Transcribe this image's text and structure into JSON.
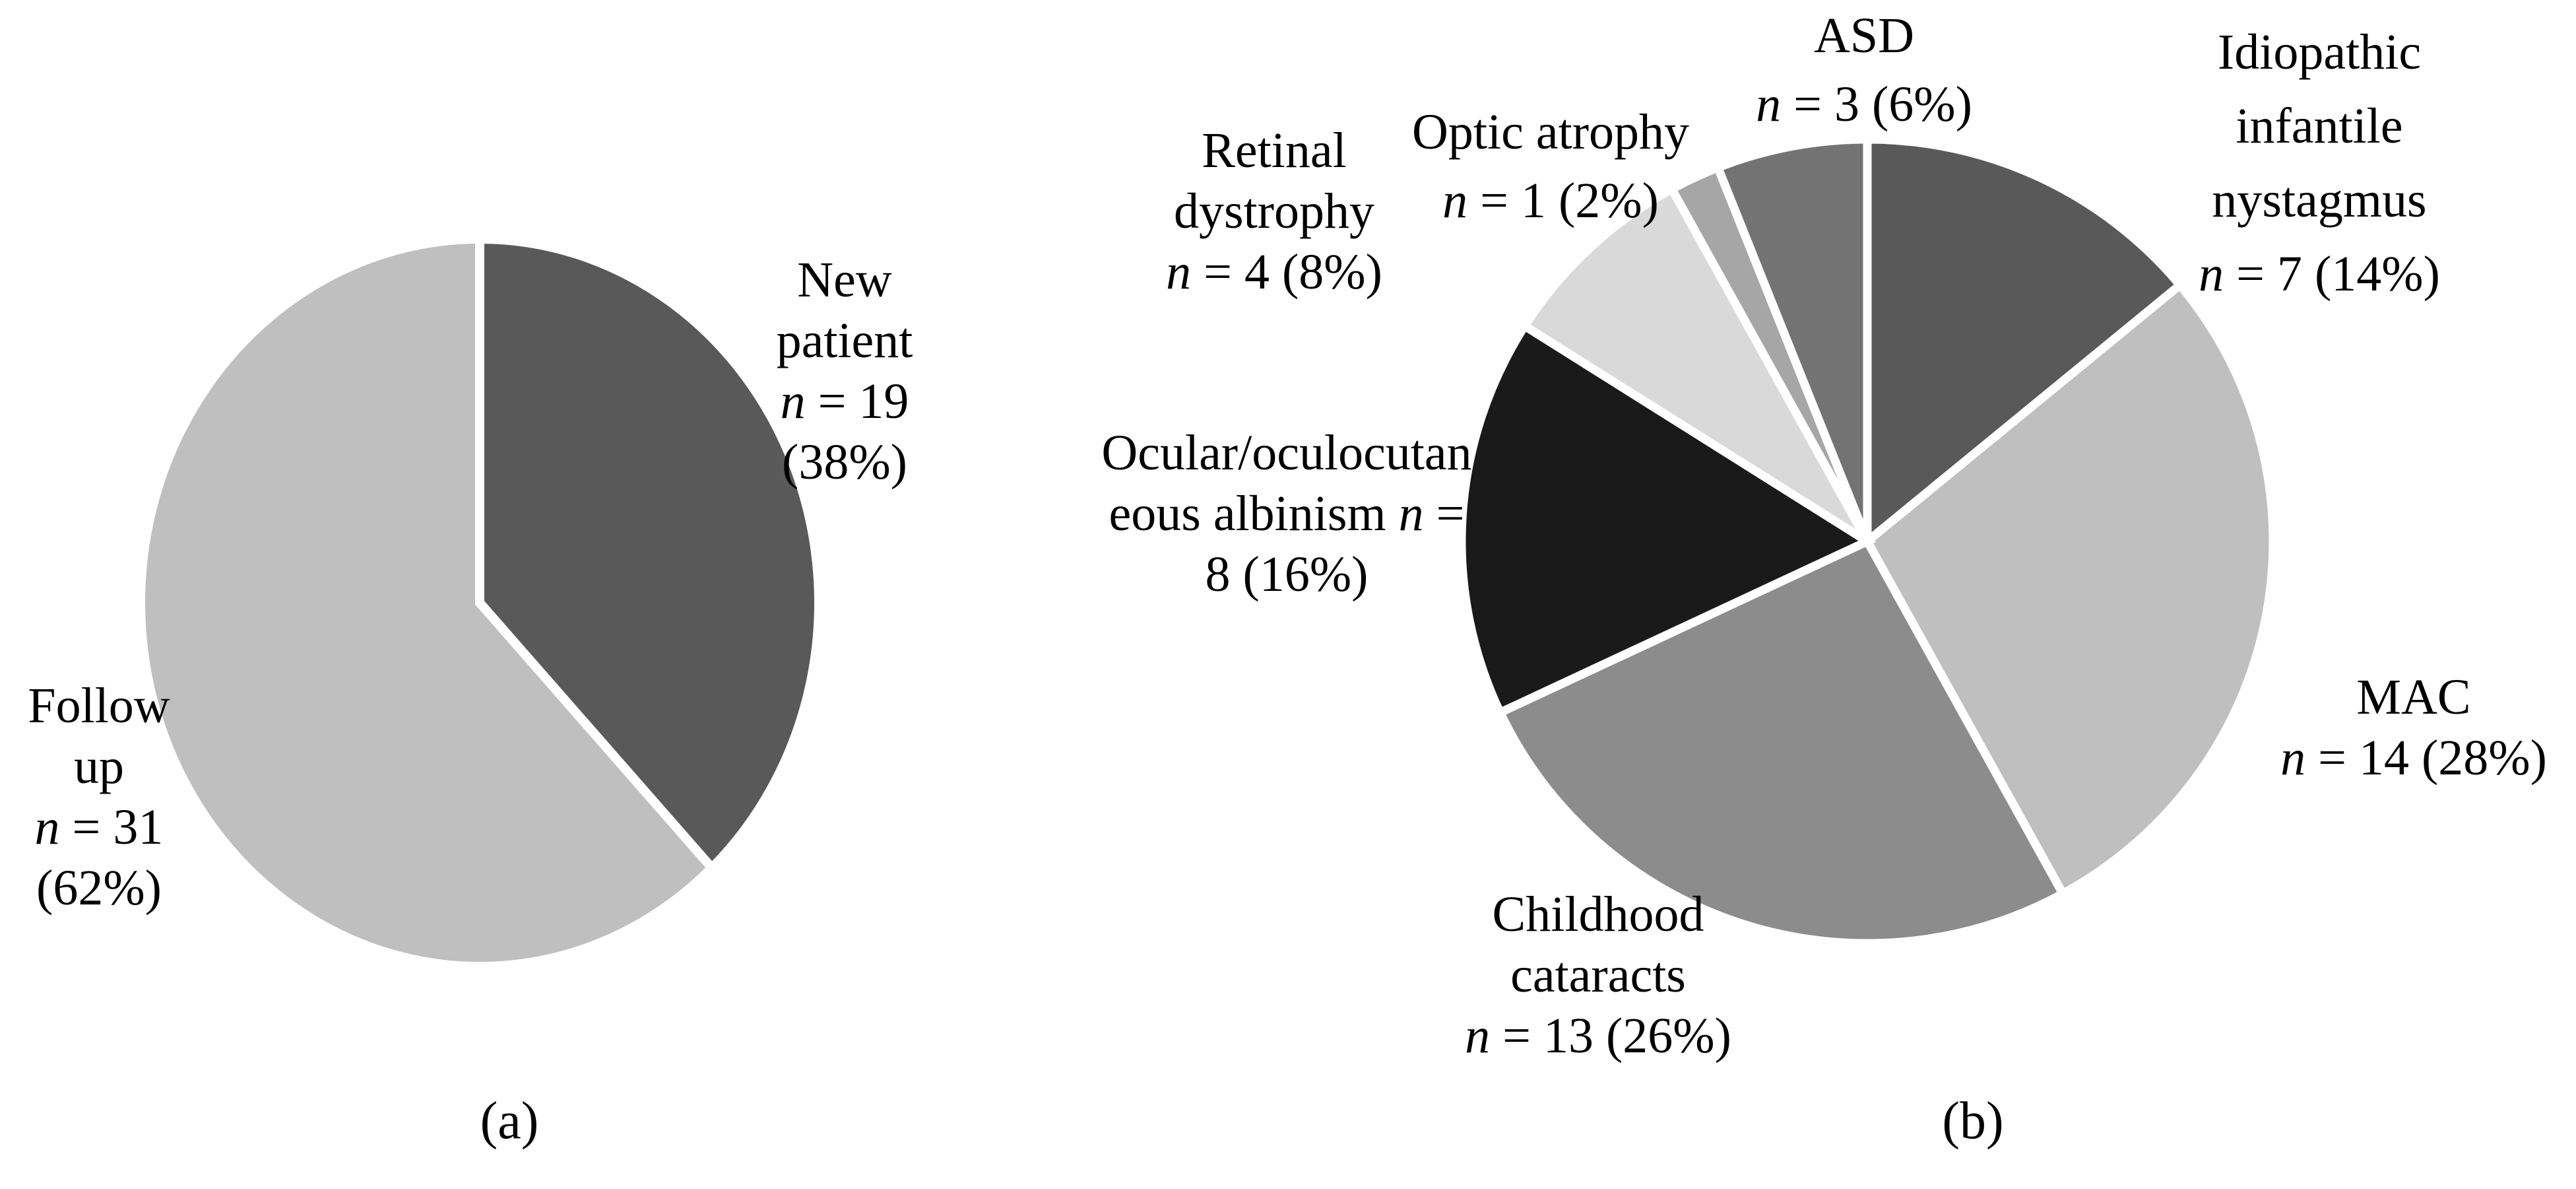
{
  "figure": {
    "background": "#ffffff",
    "separator_color": "#ffffff",
    "text_color": "#000000",
    "captions": {
      "a": "(a)",
      "b": "(b)"
    }
  },
  "chart_data": [
    {
      "id": "patient-type-pie",
      "type": "pie",
      "panel": "(a)",
      "start_angle_deg": 0,
      "direction": "clockwise",
      "legend": false,
      "slices": [
        {
          "id": "new-patient",
          "label": "New patient",
          "n": 19,
          "percent": 38,
          "value": 38,
          "color": "#595959",
          "label_lines": [
            "New",
            "patient",
            "n = 19",
            "(38%)"
          ]
        },
        {
          "id": "follow-up",
          "label": "Follow up",
          "n": 31,
          "percent": 62,
          "value": 62,
          "color": "#bfbfbf",
          "label_lines": [
            "Follow",
            "up",
            "n = 31",
            "(62%)"
          ]
        }
      ]
    },
    {
      "id": "diagnosis-pie",
      "type": "pie",
      "panel": "(b)",
      "start_angle_deg": 0,
      "direction": "clockwise",
      "legend": false,
      "slices": [
        {
          "id": "idiopathic-infantile-nystagmus",
          "label": "Idiopathic infantile nystagmus",
          "n": 7,
          "percent": 14,
          "value": 14,
          "color": "#595959",
          "label_lines": [
            "Idiopathic",
            "infantile",
            "nystagmus",
            "n = 7 (14%)"
          ]
        },
        {
          "id": "mac",
          "label": "MAC",
          "n": 14,
          "percent": 28,
          "value": 28,
          "color": "#bfbfbf",
          "label_lines": [
            "MAC",
            "n = 14 (28%)"
          ]
        },
        {
          "id": "childhood-cataracts",
          "label": "Childhood cataracts",
          "n": 13,
          "percent": 26,
          "value": 26,
          "color": "#8c8c8c",
          "label_lines": [
            "Childhood",
            "cataracts",
            "n = 13 (26%)"
          ]
        },
        {
          "id": "ocular-oculocutaneous-albinism",
          "label": "Ocular/oculocutaneous albinism",
          "n": 8,
          "percent": 16,
          "value": 16,
          "color": "#1a1a1a",
          "label_lines": [
            "Ocular/oculocutan",
            "eous albinism n =",
            "8 (16%)"
          ]
        },
        {
          "id": "retinal-dystrophy",
          "label": "Retinal dystrophy",
          "n": 4,
          "percent": 8,
          "value": 8,
          "color": "#d9d9d9",
          "label_lines": [
            "Retinal",
            "dystrophy",
            "n = 4 (8%)"
          ]
        },
        {
          "id": "optic-atrophy",
          "label": "Optic atrophy",
          "n": 1,
          "percent": 2,
          "value": 2,
          "color": "#a6a6a6",
          "label_lines": [
            "Optic atrophy",
            "n = 1 (2%)"
          ]
        },
        {
          "id": "asd",
          "label": "ASD",
          "n": 3,
          "percent": 6,
          "value": 6,
          "color": "#737373",
          "label_lines": [
            "ASD",
            "n = 3 (6%)"
          ]
        }
      ]
    }
  ]
}
